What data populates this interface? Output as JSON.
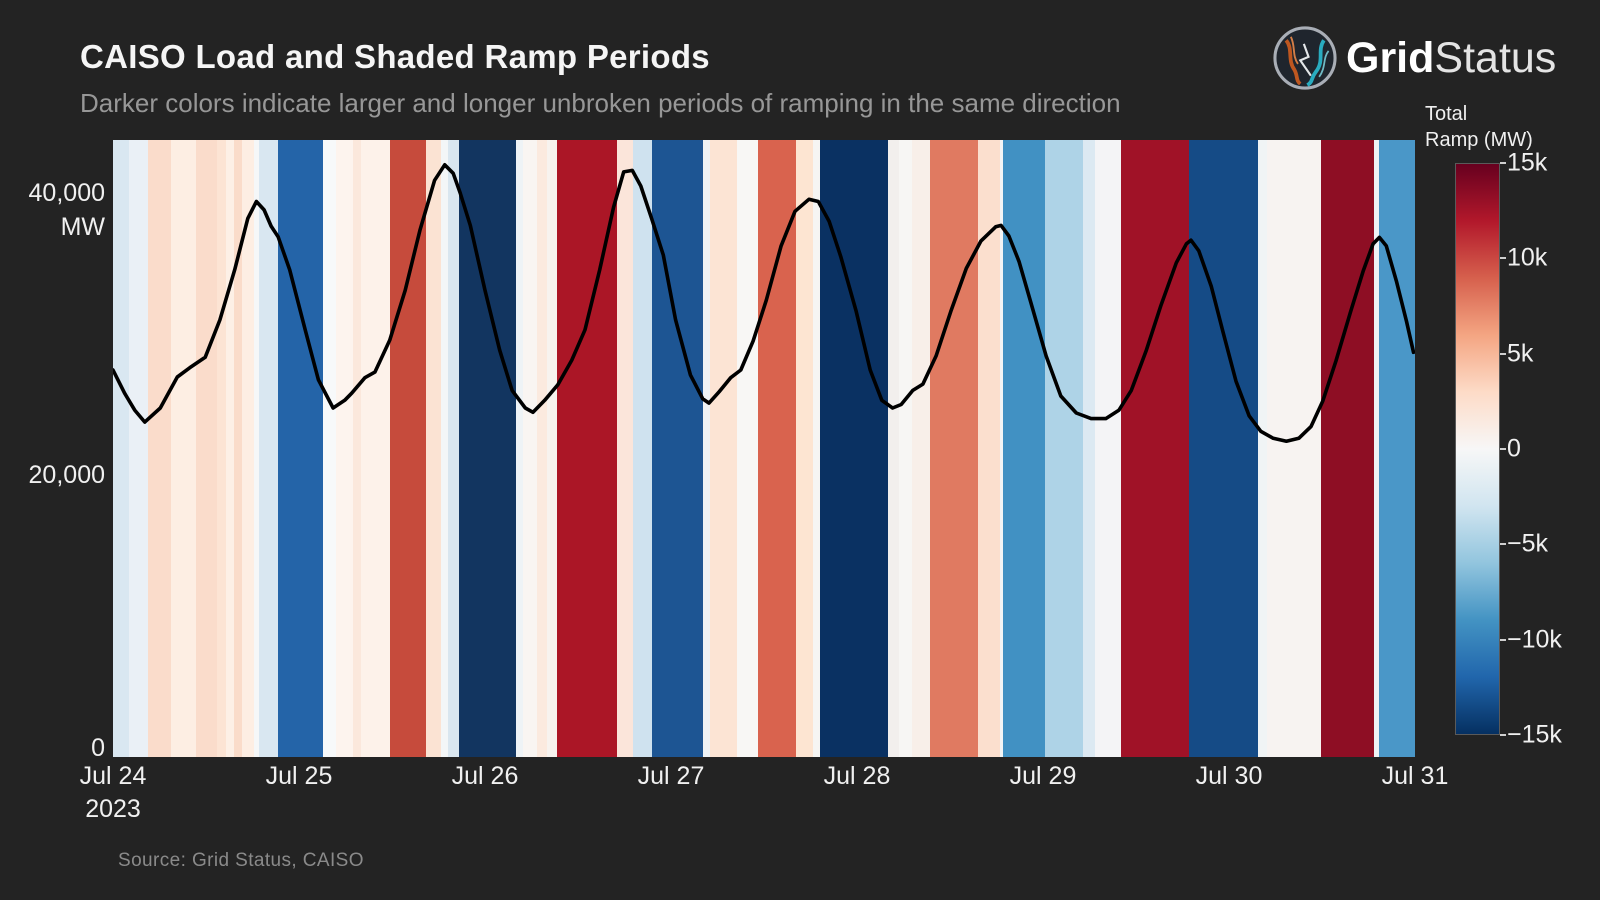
{
  "header": {
    "title": "CAISO Load and Shaded Ramp Periods",
    "subtitle": "Darker colors indicate larger and longer unbroken periods of ramping in the same direction"
  },
  "logo": {
    "brand_bold": "Grid",
    "brand_light": "Status"
  },
  "source": {
    "text": "Source: Grid Status, CAISO"
  },
  "colors": {
    "background": "#232323",
    "load_line": "#000000",
    "axis_text": "#f0f0f0",
    "subtitle_text": "#979797",
    "source_text": "#8a8a8a"
  },
  "chart_data": {
    "type": "line",
    "title": "CAISO Load and Shaded Ramp Periods",
    "x_axis": {
      "range_days": [
        0,
        7
      ],
      "ticks": [
        {
          "day": 0,
          "label": "Jul 24",
          "sub": "2023"
        },
        {
          "day": 1,
          "label": "Jul 25"
        },
        {
          "day": 2,
          "label": "Jul 26"
        },
        {
          "day": 3,
          "label": "Jul 27"
        },
        {
          "day": 4,
          "label": "Jul 28"
        },
        {
          "day": 5,
          "label": "Jul 29"
        },
        {
          "day": 6,
          "label": "Jul 30"
        },
        {
          "day": 7,
          "label": "Jul 31"
        }
      ]
    },
    "y_axis": {
      "unit": "MW",
      "range_mw": [
        0,
        43760
      ],
      "ticks": [
        {
          "mw": 40000,
          "lines": [
            "40,000",
            "MW"
          ]
        },
        {
          "mw": 20000,
          "lines": [
            "20,000"
          ]
        },
        {
          "mw": 0,
          "lines": [
            "0"
          ]
        }
      ]
    },
    "load_series": {
      "name": "CAISO Load",
      "color": "#000000",
      "points_h_mw": [
        [
          0,
          27450
        ],
        [
          1.5,
          25800
        ],
        [
          2.8,
          24600
        ],
        [
          4.1,
          23750
        ],
        [
          6.1,
          24750
        ],
        [
          8.3,
          26950
        ],
        [
          9.9,
          27600
        ],
        [
          11.9,
          28350
        ],
        [
          13.8,
          31000
        ],
        [
          15.7,
          34550
        ],
        [
          17.4,
          38200
        ],
        [
          18.5,
          39400
        ],
        [
          19.5,
          38800
        ],
        [
          20.4,
          37650
        ],
        [
          21.3,
          36900
        ],
        [
          22.8,
          34550
        ],
        [
          24.8,
          30300
        ],
        [
          26.5,
          26750
        ],
        [
          28.4,
          24750
        ],
        [
          29.9,
          25300
        ],
        [
          30.8,
          25800
        ],
        [
          32.5,
          26900
        ],
        [
          33.8,
          27300
        ],
        [
          35.7,
          29550
        ],
        [
          37.7,
          33100
        ],
        [
          39.6,
          37350
        ],
        [
          41.5,
          40900
        ],
        [
          42.8,
          42000
        ],
        [
          43.9,
          41400
        ],
        [
          44.8,
          40000
        ],
        [
          46.1,
          37700
        ],
        [
          48,
          33100
        ],
        [
          49.9,
          28850
        ],
        [
          51.5,
          26000
        ],
        [
          53.2,
          24750
        ],
        [
          54.2,
          24450
        ],
        [
          55.7,
          25300
        ],
        [
          57.4,
          26400
        ],
        [
          59.2,
          28150
        ],
        [
          60.9,
          30300
        ],
        [
          62.8,
          34550
        ],
        [
          64.6,
          39000
        ],
        [
          65.9,
          41500
        ],
        [
          67,
          41600
        ],
        [
          68.1,
          40500
        ],
        [
          69.5,
          38200
        ],
        [
          71,
          35600
        ],
        [
          72.6,
          31000
        ],
        [
          74.5,
          27100
        ],
        [
          76.1,
          25400
        ],
        [
          76.9,
          25100
        ],
        [
          78.2,
          25900
        ],
        [
          79.7,
          26900
        ],
        [
          81,
          27450
        ],
        [
          82.6,
          29500
        ],
        [
          84.3,
          32400
        ],
        [
          86.2,
          36250
        ],
        [
          88,
          38700
        ],
        [
          89.8,
          39550
        ],
        [
          91,
          39400
        ],
        [
          92.4,
          38000
        ],
        [
          93.9,
          35500
        ],
        [
          95.9,
          31600
        ],
        [
          97.7,
          27450
        ],
        [
          99.2,
          25300
        ],
        [
          100.6,
          24750
        ],
        [
          101.7,
          25000
        ],
        [
          103.2,
          26000
        ],
        [
          104.5,
          26450
        ],
        [
          106.2,
          28450
        ],
        [
          108.1,
          31600
        ],
        [
          110.1,
          34650
        ],
        [
          112,
          36600
        ],
        [
          113.9,
          37600
        ],
        [
          114.6,
          37700
        ],
        [
          115.6,
          36950
        ],
        [
          116.9,
          35150
        ],
        [
          118.4,
          32300
        ],
        [
          120.4,
          28450
        ],
        [
          122.3,
          25600
        ],
        [
          124.3,
          24400
        ],
        [
          126.2,
          24000
        ],
        [
          128.1,
          24000
        ],
        [
          129.8,
          24600
        ],
        [
          131.4,
          26000
        ],
        [
          133.3,
          28800
        ],
        [
          135.2,
          32000
        ],
        [
          137.2,
          35050
        ],
        [
          138.5,
          36400
        ],
        [
          139.1,
          36650
        ],
        [
          140.1,
          35900
        ],
        [
          141.7,
          33400
        ],
        [
          143.2,
          30200
        ],
        [
          144.9,
          26650
        ],
        [
          146.6,
          24200
        ],
        [
          148.1,
          23100
        ],
        [
          149.7,
          22600
        ],
        [
          151.4,
          22400
        ],
        [
          153,
          22600
        ],
        [
          154.6,
          23450
        ],
        [
          156.1,
          25250
        ],
        [
          157.8,
          28100
        ],
        [
          159.7,
          31600
        ],
        [
          161.3,
          34450
        ],
        [
          162.6,
          36400
        ],
        [
          163.4,
          36850
        ],
        [
          164.3,
          36250
        ],
        [
          165.6,
          33750
        ],
        [
          166.9,
          30900
        ],
        [
          167.8,
          28700
        ]
      ]
    },
    "ramp_bands": [
      {
        "h1": 0,
        "h2": 2.06,
        "color": "#d9e7f1"
      },
      {
        "h1": 2.06,
        "h2": 4.52,
        "color": "#eaf0f6"
      },
      {
        "h1": 4.52,
        "h2": 7.48,
        "color": "#fadccb"
      },
      {
        "h1": 7.48,
        "h2": 10.71,
        "color": "#fdeee3"
      },
      {
        "h1": 10.71,
        "h2": 13.42,
        "color": "#fadccb"
      },
      {
        "h1": 13.42,
        "h2": 14.58,
        "color": "#fce4d4"
      },
      {
        "h1": 14.58,
        "h2": 15.61,
        "color": "#fdf0e6"
      },
      {
        "h1": 15.61,
        "h2": 16.65,
        "color": "#fadcca"
      },
      {
        "h1": 16.65,
        "h2": 18.19,
        "color": "#fdeee3"
      },
      {
        "h1": 18.19,
        "h2": 18.84,
        "color": "#f5f7f8"
      },
      {
        "h1": 18.84,
        "h2": 21.29,
        "color": "#d9e7f1"
      },
      {
        "h1": 21.29,
        "h2": 27.1,
        "color": "#2464a8"
      },
      {
        "h1": 27.1,
        "h2": 28.77,
        "color": "#f7f9fa"
      },
      {
        "h1": 28.77,
        "h2": 30.97,
        "color": "#fdf4ee"
      },
      {
        "h1": 30.97,
        "h2": 32,
        "color": "#fbe8dc"
      },
      {
        "h1": 32,
        "h2": 35.74,
        "color": "#fdf2ea"
      },
      {
        "h1": 35.74,
        "h2": 40.39,
        "color": "#c64b3c"
      },
      {
        "h1": 40.39,
        "h2": 42.32,
        "color": "#fbe3d3"
      },
      {
        "h1": 42.32,
        "h2": 43.23,
        "color": "#f3f6f7"
      },
      {
        "h1": 43.23,
        "h2": 44.65,
        "color": "#d9e6ef"
      },
      {
        "h1": 44.65,
        "h2": 52,
        "color": "#123560"
      },
      {
        "h1": 52,
        "h2": 52.9,
        "color": "#eef3f6"
      },
      {
        "h1": 52.9,
        "h2": 54.71,
        "color": "#f9f5f2"
      },
      {
        "h1": 54.71,
        "h2": 56,
        "color": "#fbeadf"
      },
      {
        "h1": 56,
        "h2": 57.29,
        "color": "#f7f3ef"
      },
      {
        "h1": 57.29,
        "h2": 65.03,
        "color": "#ab1626"
      },
      {
        "h1": 65.03,
        "h2": 67.1,
        "color": "#fbe5da"
      },
      {
        "h1": 67.1,
        "h2": 69.55,
        "color": "#cfe2ef"
      },
      {
        "h1": 69.55,
        "h2": 76.13,
        "color": "#1d5593"
      },
      {
        "h1": 76.13,
        "h2": 77.03,
        "color": "#eef2f5"
      },
      {
        "h1": 77.03,
        "h2": 80.52,
        "color": "#fce4d4"
      },
      {
        "h1": 80.52,
        "h2": 83.23,
        "color": "#f8f7f5"
      },
      {
        "h1": 83.23,
        "h2": 88.13,
        "color": "#d9634e"
      },
      {
        "h1": 88.13,
        "h2": 90.32,
        "color": "#fde5d2"
      },
      {
        "h1": 90.32,
        "h2": 91.23,
        "color": "#f6f5f3"
      },
      {
        "h1": 91.23,
        "h2": 100,
        "color": "#0a3162"
      },
      {
        "h1": 100,
        "h2": 101.42,
        "color": "#f2efed"
      },
      {
        "h1": 101.42,
        "h2": 103.1,
        "color": "#f7f6f4"
      },
      {
        "h1": 103.1,
        "h2": 105.42,
        "color": "#f8efe9"
      },
      {
        "h1": 105.42,
        "h2": 111.61,
        "color": "#e07a61"
      },
      {
        "h1": 111.61,
        "h2": 114.45,
        "color": "#fbdfce"
      },
      {
        "h1": 114.45,
        "h2": 114.84,
        "color": "#f3f5f6"
      },
      {
        "h1": 114.84,
        "h2": 120.26,
        "color": "#4191c3"
      },
      {
        "h1": 120.26,
        "h2": 125.16,
        "color": "#aed3e7"
      },
      {
        "h1": 125.16,
        "h2": 126.71,
        "color": "#dce9f2"
      },
      {
        "h1": 126.71,
        "h2": 130.06,
        "color": "#f4f4f6"
      },
      {
        "h1": 130.06,
        "h2": 138.84,
        "color": "#a01227"
      },
      {
        "h1": 138.84,
        "h2": 147.74,
        "color": "#154b86"
      },
      {
        "h1": 147.74,
        "h2": 148.9,
        "color": "#f0f4f5"
      },
      {
        "h1": 148.9,
        "h2": 155.87,
        "color": "#f7f3f1"
      },
      {
        "h1": 155.87,
        "h2": 162.71,
        "color": "#8e0e24"
      },
      {
        "h1": 162.71,
        "h2": 163.35,
        "color": "#eef2f5"
      },
      {
        "h1": 163.35,
        "h2": 168,
        "color": "#4a97c8"
      }
    ],
    "colorbar": {
      "title_lines": [
        "Total",
        "Ramp (MW)"
      ],
      "range_mw": [
        -15000,
        15000
      ],
      "ticks": [
        {
          "value": 15000,
          "label": "15k"
        },
        {
          "value": 10000,
          "label": "10k"
        },
        {
          "value": 5000,
          "label": "5k"
        },
        {
          "value": 0,
          "label": "0"
        },
        {
          "value": -5000,
          "label": "−5k"
        },
        {
          "value": -10000,
          "label": "−10k"
        },
        {
          "value": -15000,
          "label": "−15k"
        }
      ],
      "gradient_top_to_bottom": [
        "#67001f",
        "#b2182b",
        "#d6604d",
        "#f4a582",
        "#fddbc7",
        "#f7f7f7",
        "#d1e5f0",
        "#92c5de",
        "#4393c3",
        "#2166ac",
        "#053061"
      ]
    }
  }
}
